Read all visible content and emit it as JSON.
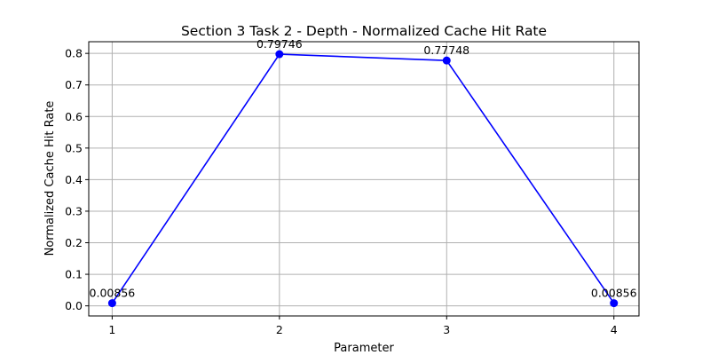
{
  "chart_data": {
    "type": "line",
    "title": "Section 3 Task 2 - Depth - Normalized Cache Hit Rate",
    "xlabel": "Parameter",
    "ylabel": "Normalized Cache Hit Rate",
    "x": [
      1,
      2,
      3,
      4
    ],
    "xticks": [
      "1",
      "2",
      "3",
      "4"
    ],
    "xlim": [
      0.86,
      4.15
    ],
    "ylim": [
      -0.032,
      0.837
    ],
    "yticks": [
      "0.0",
      "0.1",
      "0.2",
      "0.3",
      "0.4",
      "0.5",
      "0.6",
      "0.7",
      "0.8"
    ],
    "grid": true,
    "series": [
      {
        "values": [
          0.00856,
          0.79746,
          0.77748,
          0.00856
        ],
        "labels": [
          "0.00856",
          "0.79746",
          "0.77748",
          "0.00856"
        ],
        "color": "#0000ff",
        "marker": "circle"
      }
    ]
  }
}
